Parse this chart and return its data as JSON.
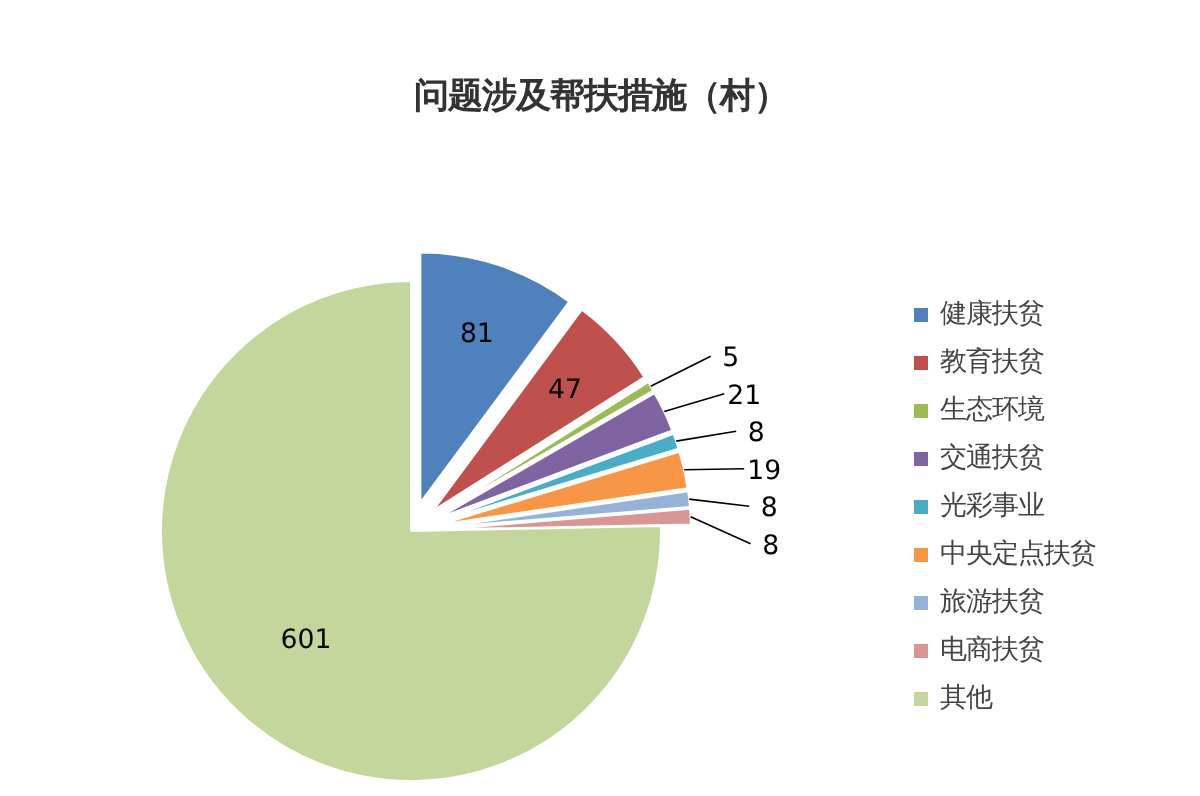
{
  "chart_data": {
    "type": "pie",
    "title": "问题涉及帮扶措施（村）",
    "categories": [
      "健康扶贫",
      "教育扶贫",
      "生态环境",
      "交通扶贫",
      "光彩事业",
      "中央定点扶贫",
      "旅游扶贫",
      "电商扶贫",
      "其他"
    ],
    "values": [
      81,
      47,
      5,
      21,
      8,
      19,
      8,
      8,
      601
    ],
    "colors": [
      "#4f81bd",
      "#c0504d",
      "#9bbb59",
      "#8064a2",
      "#4bacc6",
      "#f79646",
      "#95b3d7",
      "#d99694",
      "#c3d69b"
    ],
    "data_labels": true,
    "legend": "right"
  }
}
